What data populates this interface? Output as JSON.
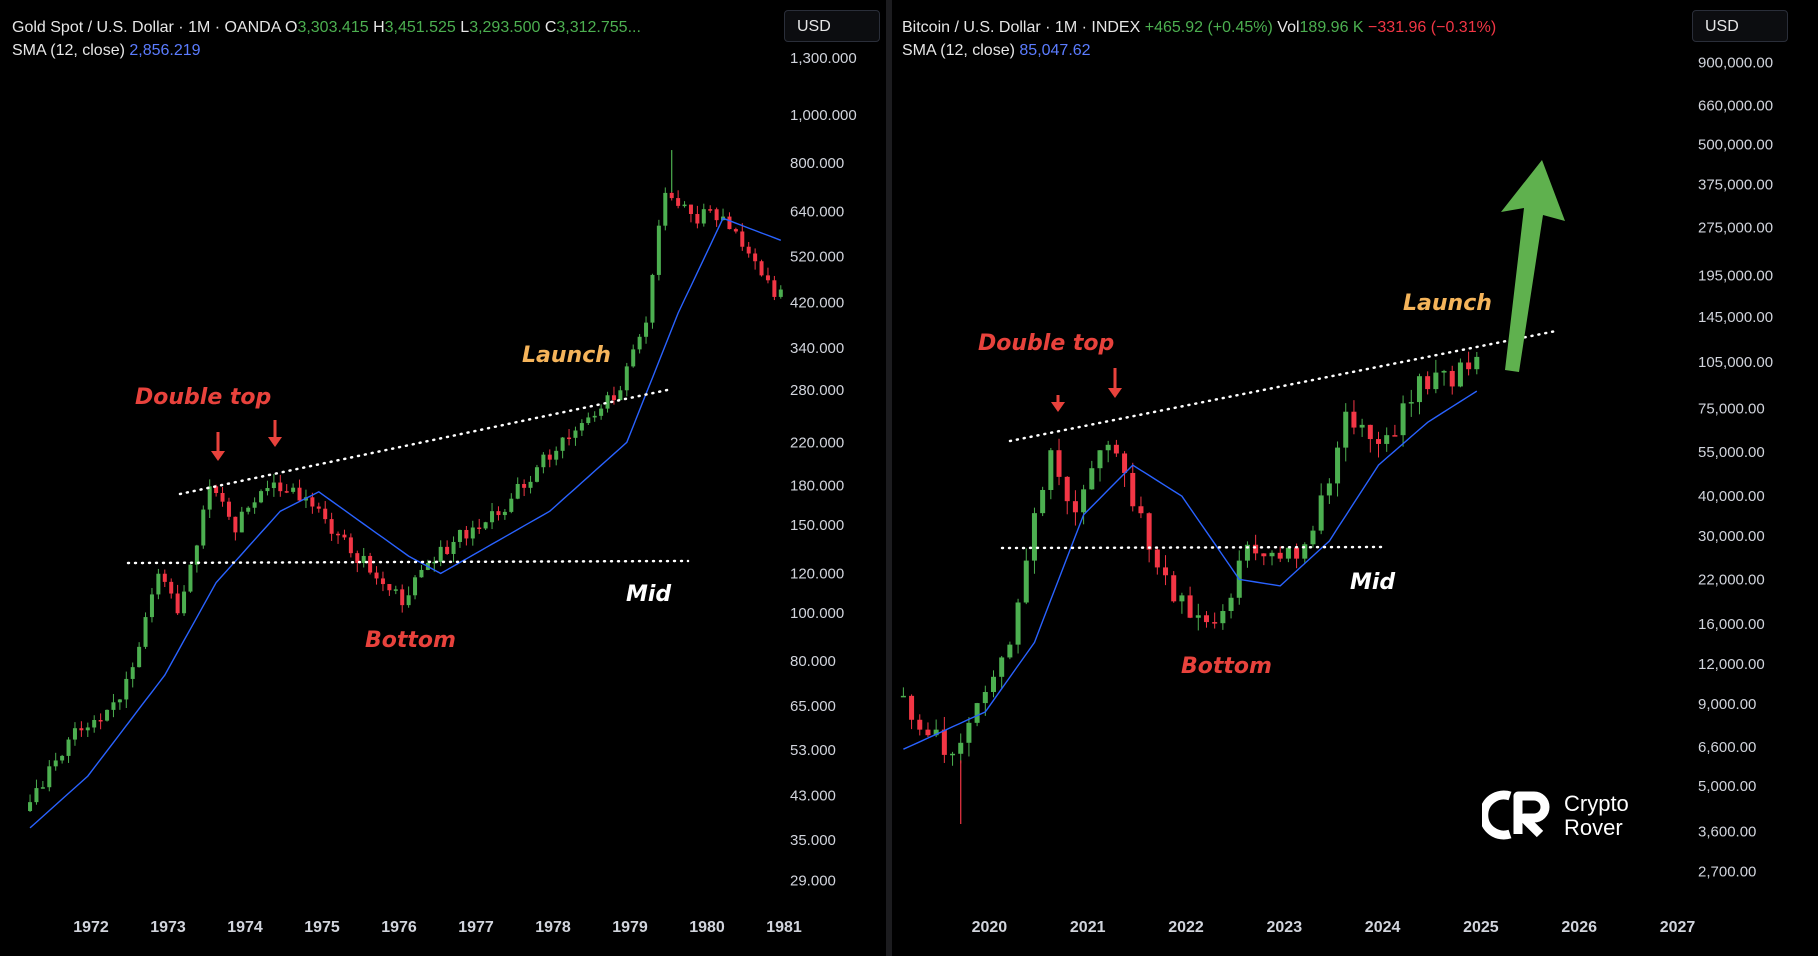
{
  "charts": [
    {
      "id": "gold",
      "header": {
        "symbol": "Gold Spot / U.S. Dollar · 1M · OANDA",
        "o_label": "O",
        "o_value": "3,303.415",
        "h_label": "H",
        "h_value": "3,451.525",
        "l_label": "L",
        "l_value": "3,293.500",
        "c_label": "C",
        "c_value": "3,312.755...",
        "sma_label": "SMA (12, close)",
        "sma_value": "2,856.219"
      },
      "currency_button": "USD",
      "price_labels": [
        "1,300.000",
        "1,000.000",
        "800.000",
        "640.000",
        "520.000",
        "420.000",
        "340.000",
        "280.000",
        "220.000",
        "180.000",
        "150.000",
        "120.000",
        "100.000",
        "80.000",
        "65.000",
        "53.000",
        "43.000",
        "35.000",
        "29.000"
      ],
      "year_labels": [
        "1972",
        "1973",
        "1974",
        "1975",
        "1976",
        "1977",
        "1978",
        "1979",
        "1980",
        "1981"
      ],
      "annotations": {
        "double_top": "Double top",
        "launch": "Launch",
        "mid": "Mid",
        "bottom": "Bottom"
      }
    },
    {
      "id": "bitcoin",
      "header": {
        "symbol": "Bitcoin / U.S. Dollar · 1M · INDEX",
        "change": "+465.92 (+0.45%)",
        "vol_label": "Vol",
        "vol_value": "189.96 K",
        "vol_change": "−331.96 (−0.31%)",
        "sma_label": "SMA (12, close)",
        "sma_value": "85,047.62"
      },
      "currency_button": "USD",
      "price_labels": [
        "900,000.00",
        "660,000.00",
        "500,000.00",
        "375,000.00",
        "275,000.00",
        "195,000.00",
        "145,000.00",
        "105,000.00",
        "75,000.00",
        "55,000.00",
        "40,000.00",
        "30,000.00",
        "22,000.00",
        "16,000.00",
        "12,000.00",
        "9,000.00",
        "6,600.00",
        "5,000.00",
        "3,600.00",
        "2,700.00"
      ],
      "year_labels": [
        "2020",
        "2021",
        "2022",
        "2023",
        "2024",
        "2025",
        "2026",
        "2027"
      ],
      "annotations": {
        "double_top": "Double top",
        "launch": "Launch",
        "mid": "Mid",
        "bottom": "Bottom"
      },
      "logo": {
        "line1": "Crypto",
        "line2": "Rover"
      }
    }
  ],
  "colors": {
    "up": "#4caf50",
    "down": "#f23645",
    "sma": "#2962ff",
    "arrow": "#5fb14e",
    "annotation_red": "#e8423c",
    "annotation_orange": "#f5b45a"
  },
  "chart_data": [
    {
      "type": "candlestick",
      "title": "Gold Spot / U.S. Dollar · 1M · OANDA",
      "scale": "log",
      "ylim": [
        27,
        1350
      ],
      "x_range": [
        "1971-09",
        "1981-06"
      ],
      "series": [
        {
          "name": "Gold Spot / U.S. Dollar",
          "anchors": [
            {
              "x": "1971-09",
              "y": 40
            },
            {
              "x": "1972-06",
              "y": 60
            },
            {
              "x": "1972-12",
              "y": 65
            },
            {
              "x": "1973-06",
              "y": 120
            },
            {
              "x": "1973-09",
              "y": 100
            },
            {
              "x": "1974-02",
              "y": 175
            },
            {
              "x": "1974-06",
              "y": 150
            },
            {
              "x": "1974-12",
              "y": 185
            },
            {
              "x": "1975-06",
              "y": 165
            },
            {
              "x": "1976-01",
              "y": 130
            },
            {
              "x": "1976-08",
              "y": 105
            },
            {
              "x": "1977-01",
              "y": 130
            },
            {
              "x": "1977-12",
              "y": 165
            },
            {
              "x": "1978-10",
              "y": 230
            },
            {
              "x": "1979-06",
              "y": 280
            },
            {
              "x": "1979-10",
              "y": 390
            },
            {
              "x": "1980-01",
              "y": 720
            },
            {
              "x": "1980-06",
              "y": 620
            },
            {
              "x": "1980-10",
              "y": 640
            },
            {
              "x": "1981-06",
              "y": 440
            }
          ]
        },
        {
          "name": "SMA (12, close)",
          "anchors": [
            {
              "x": "1971-09",
              "y": 37
            },
            {
              "x": "1972-06",
              "y": 47
            },
            {
              "x": "1973-06",
              "y": 75
            },
            {
              "x": "1974-02",
              "y": 115
            },
            {
              "x": "1974-12",
              "y": 160
            },
            {
              "x": "1975-06",
              "y": 175
            },
            {
              "x": "1976-08",
              "y": 130
            },
            {
              "x": "1977-01",
              "y": 120
            },
            {
              "x": "1978-06",
              "y": 160
            },
            {
              "x": "1979-06",
              "y": 220
            },
            {
              "x": "1980-02",
              "y": 400
            },
            {
              "x": "1980-09",
              "y": 620
            },
            {
              "x": "1981-06",
              "y": 560
            }
          ]
        }
      ],
      "peak_wick": {
        "x": "1980-01",
        "y": 850
      }
    },
    {
      "type": "candlestick",
      "title": "Bitcoin / U.S. Dollar · 1M · INDEX",
      "scale": "log",
      "ylim": [
        2400,
        950000
      ],
      "x_range": [
        "2019-08",
        "2025-06"
      ],
      "series": [
        {
          "name": "Bitcoin / U.S. Dollar",
          "anchors": [
            {
              "x": "2019-08",
              "y": 9500
            },
            {
              "x": "2020-03",
              "y": 6400
            },
            {
              "x": "2020-06",
              "y": 9200
            },
            {
              "x": "2020-10",
              "y": 13500
            },
            {
              "x": "2021-01",
              "y": 33000
            },
            {
              "x": "2021-03",
              "y": 58000
            },
            {
              "x": "2021-06",
              "y": 35000
            },
            {
              "x": "2021-10",
              "y": 61000
            },
            {
              "x": "2022-01",
              "y": 38000
            },
            {
              "x": "2022-06",
              "y": 19000
            },
            {
              "x": "2022-12",
              "y": 16500
            },
            {
              "x": "2023-03",
              "y": 28000
            },
            {
              "x": "2023-09",
              "y": 27000
            },
            {
              "x": "2024-01",
              "y": 42000
            },
            {
              "x": "2024-03",
              "y": 71000
            },
            {
              "x": "2024-08",
              "y": 59000
            },
            {
              "x": "2024-12",
              "y": 95000
            },
            {
              "x": "2025-04",
              "y": 90000
            },
            {
              "x": "2025-06",
              "y": 107000
            }
          ]
        },
        {
          "name": "SMA (12, close)",
          "anchors": [
            {
              "x": "2019-08",
              "y": 6500
            },
            {
              "x": "2020-06",
              "y": 8500
            },
            {
              "x": "2020-12",
              "y": 14000
            },
            {
              "x": "2021-06",
              "y": 35000
            },
            {
              "x": "2021-12",
              "y": 50000
            },
            {
              "x": "2022-06",
              "y": 40000
            },
            {
              "x": "2023-01",
              "y": 22000
            },
            {
              "x": "2023-06",
              "y": 21000
            },
            {
              "x": "2023-12",
              "y": 29000
            },
            {
              "x": "2024-06",
              "y": 50000
            },
            {
              "x": "2024-12",
              "y": 68000
            },
            {
              "x": "2025-06",
              "y": 85047
            }
          ]
        }
      ],
      "low_wick": {
        "x": "2020-03",
        "y": 3800
      }
    }
  ]
}
